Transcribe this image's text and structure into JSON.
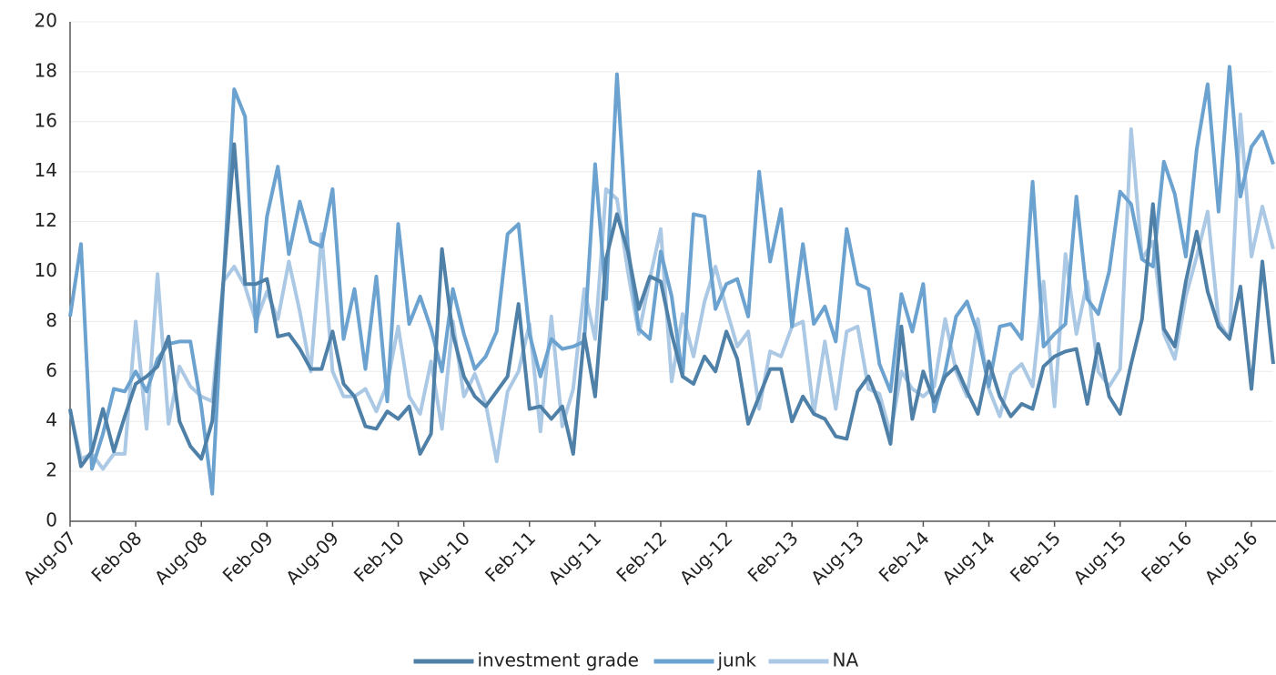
{
  "chart_data": {
    "type": "line",
    "categories": [
      "Aug-07",
      null,
      null,
      null,
      null,
      null,
      "Feb-08",
      null,
      null,
      null,
      null,
      null,
      "Aug-08",
      null,
      null,
      null,
      null,
      null,
      "Feb-09",
      null,
      null,
      null,
      null,
      null,
      "Aug-09",
      null,
      null,
      null,
      null,
      null,
      "Feb-10",
      null,
      null,
      null,
      null,
      null,
      "Aug-10",
      null,
      null,
      null,
      null,
      null,
      "Feb-11",
      null,
      null,
      null,
      null,
      null,
      "Aug-11",
      null,
      null,
      null,
      null,
      null,
      "Feb-12",
      null,
      null,
      null,
      null,
      null,
      "Aug-12",
      null,
      null,
      null,
      null,
      null,
      "Feb-13",
      null,
      null,
      null,
      null,
      null,
      "Aug-13",
      null,
      null,
      null,
      null,
      null,
      "Feb-14",
      null,
      null,
      null,
      null,
      null,
      "Aug-14",
      null,
      null,
      null,
      null,
      null,
      "Feb-15",
      null,
      null,
      null,
      null,
      null,
      "Aug-15",
      null,
      null,
      null,
      null,
      null,
      "Feb-16",
      null,
      null,
      null,
      null,
      null,
      "Aug-16",
      null,
      null
    ],
    "series": [
      {
        "name": "investment grade",
        "color": "#4f80a8",
        "values": [
          4.5,
          2.2,
          2.8,
          4.5,
          2.8,
          4.2,
          5.5,
          5.8,
          6.2,
          7.4,
          4.0,
          3.0,
          2.5,
          4.0,
          9.5,
          15.1,
          9.5,
          9.5,
          9.7,
          7.4,
          7.5,
          6.9,
          6.1,
          6.1,
          7.6,
          5.5,
          5.0,
          3.8,
          3.7,
          4.4,
          4.1,
          4.6,
          2.7,
          3.5,
          10.9,
          7.5,
          5.8,
          5.0,
          4.6,
          5.2,
          5.8,
          8.7,
          4.5,
          4.6,
          4.1,
          4.6,
          2.7,
          7.5,
          5.0,
          10.5,
          12.3,
          10.8,
          8.5,
          9.8,
          9.6,
          7.5,
          5.8,
          5.5,
          6.6,
          6.0,
          7.6,
          6.5,
          3.9,
          5.0,
          6.1,
          6.1,
          4.0,
          5.0,
          4.3,
          4.1,
          3.4,
          3.3,
          5.2,
          5.8,
          4.7,
          3.1,
          7.8,
          4.1,
          6.0,
          4.8,
          5.8,
          6.2,
          5.2,
          4.3,
          6.4,
          5.0,
          4.2,
          4.7,
          4.5,
          6.2,
          6.6,
          6.8,
          6.9,
          4.7,
          7.1,
          5.0,
          4.3,
          6.3,
          8.1,
          12.7,
          7.7,
          7.0,
          9.6,
          11.6,
          9.2,
          7.8,
          7.3,
          9.4,
          5.3,
          10.4,
          6.3
        ]
      },
      {
        "name": "junk",
        "color": "#6ba2cf",
        "values": [
          8.2,
          11.1,
          2.1,
          3.5,
          5.3,
          5.2,
          6.0,
          5.2,
          6.5,
          7.1,
          7.2,
          7.2,
          4.6,
          1.1,
          9.5,
          17.3,
          16.2,
          7.6,
          12.2,
          14.2,
          10.7,
          12.8,
          11.2,
          11.0,
          13.3,
          7.3,
          9.3,
          6.1,
          9.8,
          4.8,
          11.9,
          7.9,
          9.0,
          7.7,
          6.0,
          9.3,
          7.5,
          6.1,
          6.6,
          7.6,
          11.5,
          11.9,
          7.5,
          5.8,
          7.3,
          6.9,
          7.0,
          7.2,
          14.3,
          8.9,
          17.9,
          11.0,
          7.7,
          7.3,
          10.8,
          9.0,
          5.8,
          12.3,
          12.2,
          8.5,
          9.5,
          9.7,
          8.2,
          14.0,
          10.4,
          12.5,
          7.8,
          11.1,
          7.9,
          8.6,
          7.2,
          11.7,
          9.5,
          9.3,
          6.3,
          5.2,
          9.1,
          7.6,
          9.5,
          4.4,
          6.0,
          8.2,
          8.8,
          7.5,
          5.4,
          7.8,
          7.9,
          7.3,
          13.6,
          7.0,
          7.5,
          7.9,
          13.0,
          8.9,
          8.3,
          10.0,
          13.2,
          12.7,
          10.5,
          10.2,
          14.4,
          13.1,
          10.6,
          14.9,
          17.5,
          12.4,
          18.2,
          13.0,
          15.0,
          15.6,
          14.3
        ]
      },
      {
        "name": "NA",
        "color": "#abc8e4",
        "values": [
          4.4,
          2.5,
          2.7,
          2.1,
          2.7,
          2.7,
          8.0,
          3.7,
          9.9,
          3.9,
          6.2,
          5.4,
          5.0,
          4.8,
          9.6,
          10.2,
          9.4,
          8.0,
          9.2,
          8.1,
          10.4,
          8.4,
          6.0,
          11.5,
          6.0,
          5.0,
          5.0,
          5.3,
          4.4,
          5.5,
          7.8,
          5.0,
          4.3,
          6.4,
          3.7,
          8.0,
          5.0,
          5.9,
          4.7,
          2.4,
          5.2,
          6.0,
          7.9,
          3.6,
          8.2,
          3.8,
          5.3,
          9.3,
          7.3,
          13.3,
          12.9,
          10.0,
          7.5,
          9.7,
          11.7,
          5.6,
          8.3,
          6.6,
          8.8,
          10.2,
          8.5,
          7.0,
          7.6,
          4.5,
          6.8,
          6.6,
          7.8,
          8.0,
          4.3,
          7.2,
          4.5,
          7.6,
          7.8,
          5.3,
          5.1,
          3.5,
          6.0,
          5.3,
          5.0,
          5.4,
          8.1,
          6.0,
          5.0,
          8.1,
          5.3,
          4.2,
          5.9,
          6.3,
          5.4,
          9.6,
          4.6,
          10.7,
          7.5,
          9.6,
          6.0,
          5.4,
          6.1,
          15.7,
          10.5,
          11.2,
          7.5,
          6.5,
          9.0,
          10.6,
          12.4,
          8.0,
          7.3,
          16.3,
          10.6,
          12.6,
          10.9
        ]
      }
    ],
    "ylim": [
      0,
      20
    ],
    "yticks": [
      0,
      2,
      4,
      6,
      8,
      10,
      12,
      14,
      16,
      18,
      20
    ],
    "grid": true,
    "legend": "bottom"
  }
}
